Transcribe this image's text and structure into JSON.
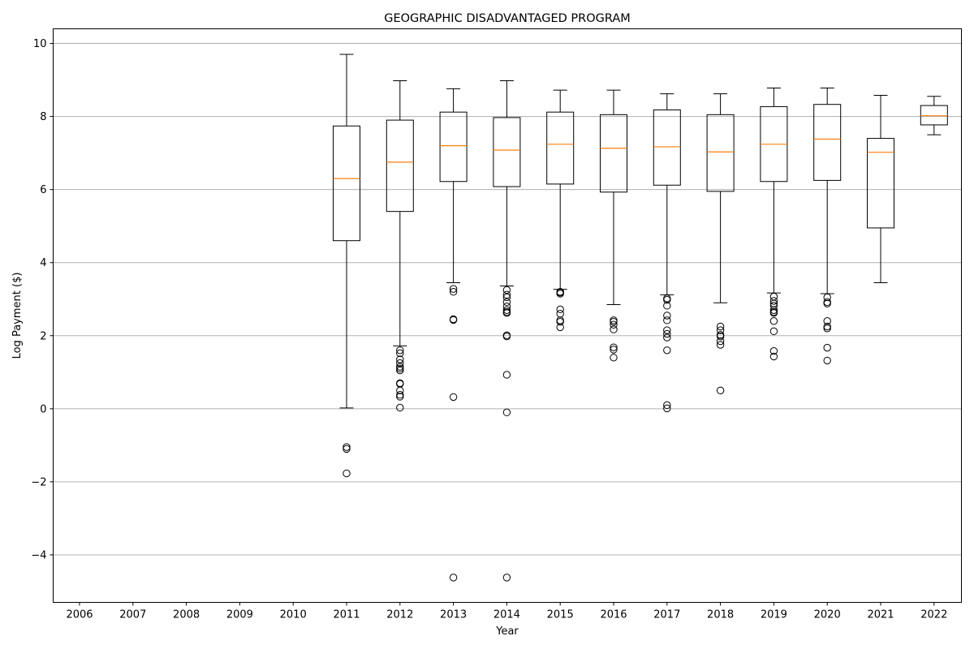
{
  "chart_data": {
    "type": "box",
    "title": "GEOGRAPHIC DISADVANTAGED PROGRAM",
    "xlabel": "Year",
    "ylabel": "Log Payment ($)",
    "ylim": [
      -5.3,
      10.4
    ],
    "yticks": [
      -4,
      -2,
      0,
      2,
      4,
      6,
      8,
      10
    ],
    "ytick_labels": [
      "−4",
      "−2",
      "0",
      "2",
      "4",
      "6",
      "8",
      "10"
    ],
    "grid": "horizontal",
    "categories": [
      "2006",
      "2007",
      "2008",
      "2009",
      "2010",
      "2011",
      "2012",
      "2013",
      "2014",
      "2015",
      "2016",
      "2017",
      "2018",
      "2019",
      "2020",
      "2021",
      "2022"
    ],
    "boxes": [
      null,
      null,
      null,
      null,
      null,
      {
        "whisker_low": 0.02,
        "q1": 4.6,
        "median": 6.3,
        "q3": 7.74,
        "whisker_high": 9.7,
        "fliers": [
          -1.05,
          -1.1,
          -1.77
        ]
      },
      {
        "whisker_low": 1.72,
        "q1": 5.4,
        "median": 6.75,
        "q3": 7.9,
        "whisker_high": 8.98,
        "fliers": [
          1.6,
          1.52,
          1.35,
          1.25,
          1.15,
          1.1,
          1.05,
          0.7,
          0.68,
          0.5,
          0.38,
          0.33,
          0.03
        ]
      },
      {
        "whisker_low": 3.45,
        "q1": 6.22,
        "median": 7.2,
        "q3": 8.12,
        "whisker_high": 8.76,
        "fliers": [
          3.28,
          3.2,
          2.45,
          2.43,
          0.32,
          -4.62
        ]
      },
      {
        "whisker_low": 3.36,
        "q1": 6.08,
        "median": 7.08,
        "q3": 7.97,
        "whisker_high": 8.98,
        "fliers": [
          3.25,
          3.12,
          3.05,
          2.92,
          2.8,
          2.7,
          2.65,
          2.62,
          2.01,
          1.98,
          0.93,
          -0.1,
          -4.62
        ]
      },
      {
        "whisker_low": 3.27,
        "q1": 6.15,
        "median": 7.24,
        "q3": 8.12,
        "whisker_high": 8.72,
        "fliers": [
          3.2,
          3.15,
          3.18,
          2.72,
          2.6,
          2.42,
          2.38,
          2.23
        ]
      },
      {
        "whisker_low": 2.85,
        "q1": 5.93,
        "median": 7.13,
        "q3": 8.05,
        "whisker_high": 8.72,
        "fliers": [
          2.42,
          2.38,
          2.3,
          2.17,
          1.68,
          1.62,
          1.4
        ]
      },
      {
        "whisker_low": 3.12,
        "q1": 6.12,
        "median": 7.17,
        "q3": 8.18,
        "whisker_high": 8.62,
        "fliers": [
          3.02,
          2.98,
          2.82,
          2.55,
          2.42,
          2.15,
          2.05,
          1.95,
          1.6,
          0.1,
          0.01
        ]
      },
      {
        "whisker_low": 2.9,
        "q1": 5.95,
        "median": 7.03,
        "q3": 8.05,
        "whisker_high": 8.62,
        "fliers": [
          2.25,
          2.15,
          2.02,
          1.98,
          1.85,
          1.75,
          0.5
        ]
      },
      {
        "whisker_low": 3.17,
        "q1": 6.22,
        "median": 7.24,
        "q3": 8.27,
        "whisker_high": 8.78,
        "fliers": [
          3.07,
          2.95,
          2.88,
          2.82,
          2.7,
          2.65,
          2.62,
          2.4,
          2.12,
          1.58,
          1.43
        ]
      },
      {
        "whisker_low": 3.15,
        "q1": 6.25,
        "median": 7.38,
        "q3": 8.33,
        "whisker_high": 8.78,
        "fliers": [
          3.05,
          2.92,
          2.88,
          2.4,
          2.25,
          2.2,
          1.67,
          1.32
        ]
      },
      {
        "whisker_low": 3.45,
        "q1": 4.95,
        "median": 7.02,
        "q3": 7.4,
        "whisker_high": 8.58,
        "fliers": []
      },
      {
        "whisker_low": 7.5,
        "q1": 7.77,
        "median": 8.02,
        "q3": 8.3,
        "whisker_high": 8.55,
        "fliers": []
      }
    ],
    "colors": {
      "box": "#000000",
      "median": "#ff7f0e",
      "grid": "#b0b0b0",
      "flier_face": "none"
    }
  }
}
